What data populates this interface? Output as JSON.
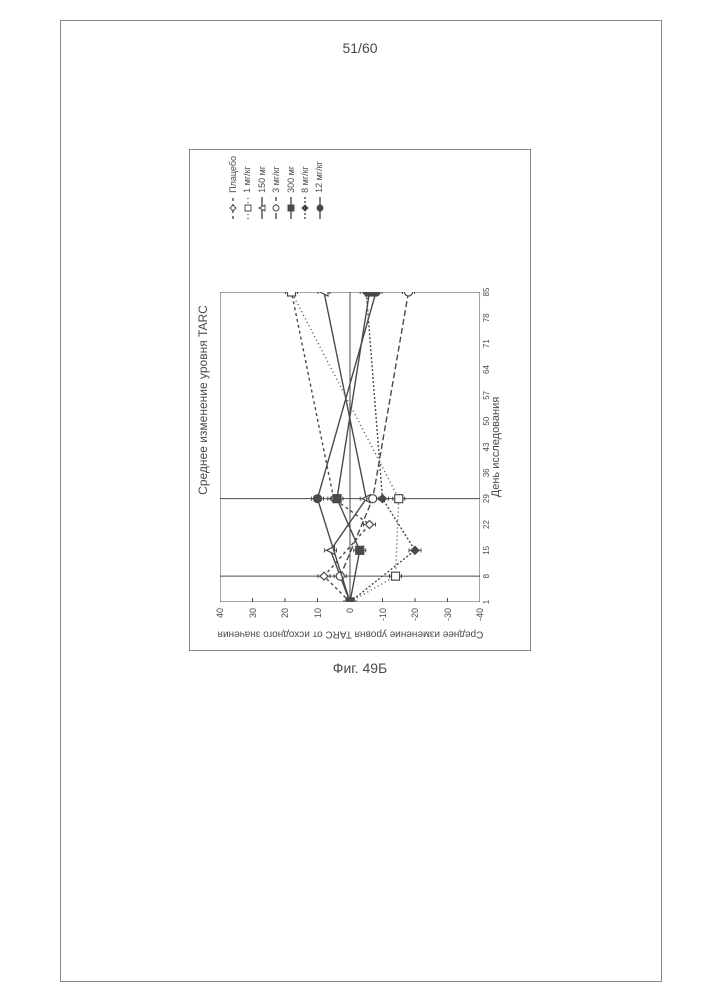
{
  "page": {
    "number": "51/60",
    "figure_caption": "Фиг. 49Б"
  },
  "chart": {
    "type": "line",
    "title": "Среднее изменение уровня TARC",
    "xlabel": "День исследования",
    "ylabel": "Среднее изменение уровня TARC от исходного значения",
    "xlim": [
      1,
      85
    ],
    "ylim": [
      -40,
      40
    ],
    "yticks": [
      -40,
      -30,
      -20,
      -10,
      0,
      10,
      20,
      30,
      40
    ],
    "xticks": [
      1,
      8,
      15,
      22,
      29,
      36,
      43,
      50,
      57,
      64,
      71,
      78,
      85
    ],
    "background_color": "#ffffff",
    "axis_color": "#4a4a4a",
    "refline_color": "#4a4a4a",
    "series": [
      {
        "name": "Плацебо",
        "vals": [
          [
            1,
            0
          ],
          [
            8,
            8
          ],
          [
            22,
            -6
          ],
          [
            29,
            5
          ],
          [
            85,
            18
          ]
        ],
        "color": "#4a4a4a",
        "dash": "3,3",
        "marker": "diamond"
      },
      {
        "name": "1 мг/кг",
        "vals": [
          [
            1,
            0
          ],
          [
            8,
            -14
          ],
          [
            29,
            -15
          ],
          [
            85,
            18
          ]
        ],
        "color": "#4a4a4a",
        "dash": "1,3",
        "marker": "square"
      },
      {
        "name": "150 мг",
        "vals": [
          [
            1,
            0
          ],
          [
            15,
            6
          ],
          [
            29,
            -5
          ],
          [
            85,
            8
          ]
        ],
        "color": "#4a4a4a",
        "dash": "",
        "marker": "triangle"
      },
      {
        "name": "3 мг/кг",
        "vals": [
          [
            1,
            0
          ],
          [
            8,
            3
          ],
          [
            29,
            -7
          ],
          [
            85,
            -18
          ]
        ],
        "color": "#4a4a4a",
        "dash": "6,3",
        "marker": "circle"
      },
      {
        "name": "300 мг",
        "vals": [
          [
            1,
            0
          ],
          [
            15,
            -3
          ],
          [
            29,
            4
          ],
          [
            85,
            -6
          ]
        ],
        "color": "#4a4a4a",
        "dash": "",
        "marker": "square-filled"
      },
      {
        "name": "8 мг/кг",
        "vals": [
          [
            1,
            0
          ],
          [
            15,
            -20
          ],
          [
            29,
            -10
          ],
          [
            85,
            -5
          ]
        ],
        "color": "#4a4a4a",
        "dash": "2,2",
        "marker": "diamond-filled"
      },
      {
        "name": "12 мг/кг",
        "vals": [
          [
            1,
            0
          ],
          [
            29,
            10
          ],
          [
            85,
            -8
          ]
        ],
        "color": "#4a4a4a",
        "dash": "",
        "marker": "circle-filled"
      }
    ],
    "reflines_x": [
      8,
      29,
      85
    ],
    "marker_size": 4,
    "line_width": 1.4,
    "errorbar_half": 6
  }
}
